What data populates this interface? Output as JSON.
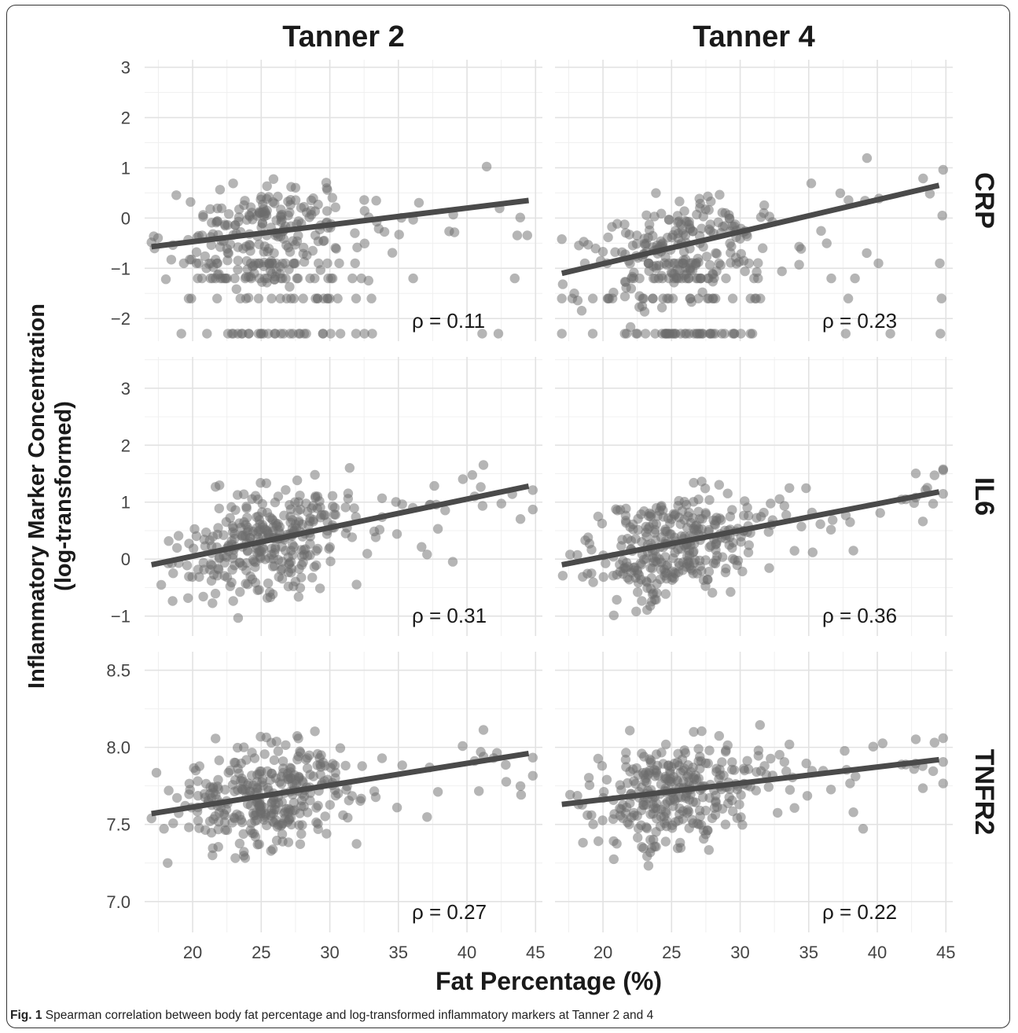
{
  "figure": {
    "caption_label": "Fig. 1",
    "caption_text": "Spearman correlation between body fat percentage and log-transformed inflammatory markers at Tanner 2 and 4"
  },
  "chart_data": {
    "type": "scatter",
    "xlabel": "Fat Percentage (%)",
    "ylabel_lines": [
      "Inflammatory Marker Concentration",
      "(log-transformed)"
    ],
    "columns": [
      "Tanner 2",
      "Tanner 4"
    ],
    "rows": [
      "CRP",
      "IL6",
      "TNFR2"
    ],
    "xlim": [
      16.5,
      45.5
    ],
    "xticks": [
      20,
      25,
      30,
      35,
      40,
      45
    ],
    "grid": true,
    "point_color": "#6b6b6b",
    "line_color": "#4a4a4a",
    "panels": [
      {
        "row": "CRP",
        "column": "Tanner 2",
        "ylim": [
          -2.45,
          3.15
        ],
        "yticks": [
          -2,
          -1,
          0,
          1,
          2,
          3
        ],
        "fit": {
          "x": [
            17,
            44.5
          ],
          "y": [
            -0.57,
            0.35
          ]
        },
        "rho": "ρ = 0.11"
      },
      {
        "row": "CRP",
        "column": "Tanner 4",
        "ylim": [
          -2.45,
          3.15
        ],
        "yticks": [
          -2,
          -1,
          0,
          1,
          2,
          3
        ],
        "fit": {
          "x": [
            17,
            44.5
          ],
          "y": [
            -1.1,
            0.65
          ]
        },
        "rho": "ρ = 0.23"
      },
      {
        "row": "IL6",
        "column": "Tanner 2",
        "ylim": [
          -1.35,
          3.55
        ],
        "yticks": [
          -1,
          0,
          1,
          2,
          3
        ],
        "fit": {
          "x": [
            17,
            44.5
          ],
          "y": [
            -0.1,
            1.28
          ]
        },
        "rho": "ρ = 0.31"
      },
      {
        "row": "IL6",
        "column": "Tanner 4",
        "ylim": [
          -1.35,
          3.55
        ],
        "yticks": [
          -1,
          0,
          1,
          2,
          3
        ],
        "fit": {
          "x": [
            17,
            44.5
          ],
          "y": [
            -0.1,
            1.18
          ]
        },
        "rho": "ρ = 0.36"
      },
      {
        "row": "TNFR2",
        "column": "Tanner 2",
        "ylim": [
          6.8,
          8.62
        ],
        "yticks": [
          7.0,
          7.5,
          8.0,
          8.5
        ],
        "fit": {
          "x": [
            17,
            44.5
          ],
          "y": [
            7.57,
            7.96
          ]
        },
        "rho": "ρ = 0.27"
      },
      {
        "row": "TNFR2",
        "column": "Tanner 4",
        "ylim": [
          6.8,
          8.62
        ],
        "yticks": [
          7.0,
          7.5,
          8.0,
          8.5
        ],
        "fit": {
          "x": [
            17,
            44.5
          ],
          "y": [
            7.63,
            7.92
          ]
        },
        "rho": "ρ = 0.22"
      }
    ]
  }
}
